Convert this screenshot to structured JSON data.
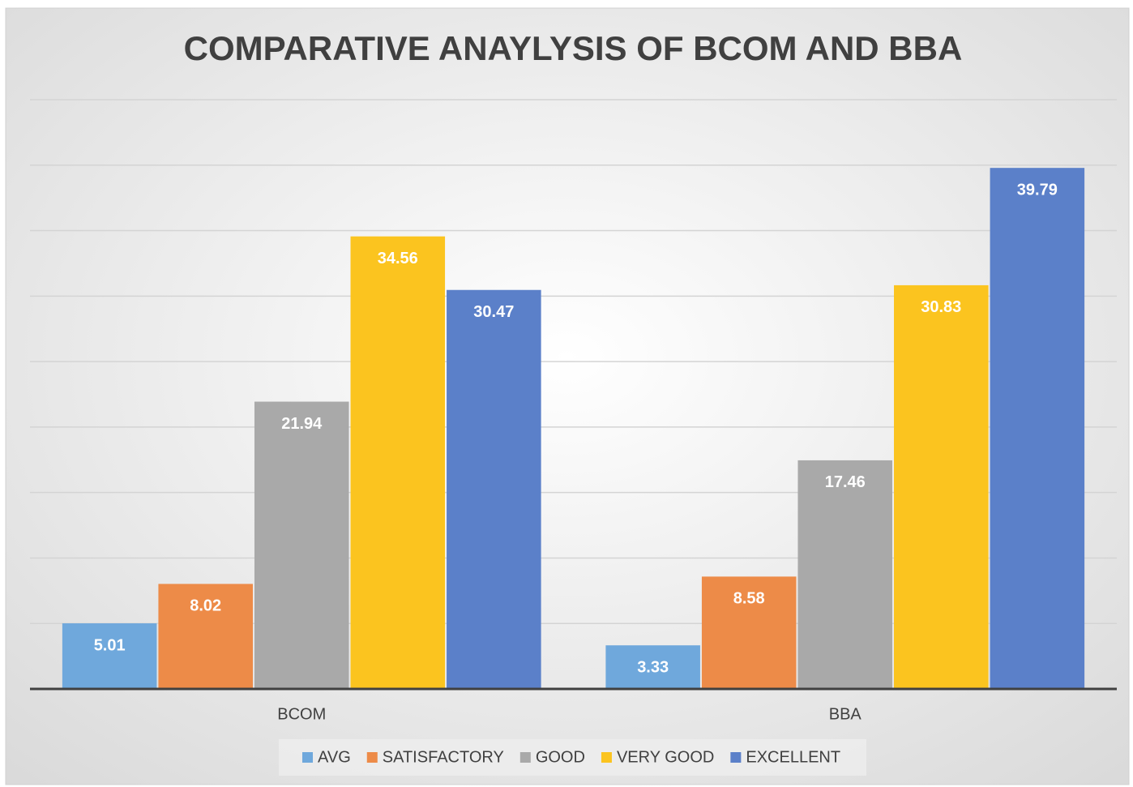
{
  "chart_data": {
    "type": "bar",
    "title": "COMPARATIVE ANAYLYSIS OF BCOM AND BBA",
    "categories": [
      "BCOM",
      "BBA"
    ],
    "series": [
      {
        "name": "AVG",
        "color": "#6fa8dc",
        "values": [
          5.01,
          3.33
        ]
      },
      {
        "name": "SATISFACTORY",
        "color": "#ed8b48",
        "values": [
          8.02,
          8.58
        ]
      },
      {
        "name": "GOOD",
        "color": "#a9a9a9",
        "values": [
          21.94,
          17.46
        ]
      },
      {
        "name": "VERY GOOD",
        "color": "#fbc41f",
        "values": [
          34.56,
          30.83
        ]
      },
      {
        "name": "EXCELLENT",
        "color": "#5b80c9",
        "values": [
          30.47,
          39.79
        ]
      }
    ],
    "ylim": [
      0,
      45
    ],
    "yticks": [
      0,
      5,
      10,
      15,
      20,
      25,
      30,
      35,
      40,
      45
    ],
    "grid": true,
    "legend": "bottom"
  }
}
